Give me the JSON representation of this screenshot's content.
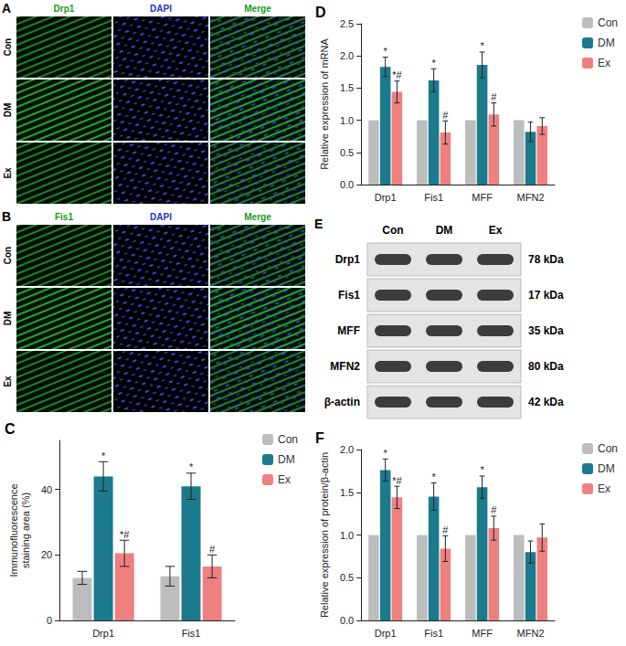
{
  "panels": {
    "A": {
      "label": "A",
      "columns": [
        "Drp1",
        "DAPI",
        "Merge"
      ],
      "rows": [
        "Con",
        "DM",
        "Ex"
      ]
    },
    "B": {
      "label": "B",
      "columns": [
        "Fis1",
        "DAPI",
        "Merge"
      ],
      "rows": [
        "Con",
        "DM",
        "Ex"
      ]
    },
    "E": {
      "label": "E",
      "columns": [
        "Con",
        "DM",
        "Ex"
      ],
      "rows": [
        {
          "protein": "Drp1",
          "size": "78 kDa"
        },
        {
          "protein": "Fis1",
          "size": "17 kDa"
        },
        {
          "protein": "MFF",
          "size": "35 kDa"
        },
        {
          "protein": "MFN2",
          "size": "80 kDa"
        },
        {
          "protein": "β-actin",
          "size": "42 kDa"
        }
      ]
    }
  },
  "chart_data": [
    {
      "type": "bar",
      "title": "C",
      "ylabel": "Immunofluorescence\nstaining area (%)",
      "categories": [
        "Drp1",
        "Fis1"
      ],
      "ylim": [
        0,
        55
      ],
      "yticks": [
        0,
        20,
        40
      ],
      "grid": false,
      "legend": "upper right",
      "series": [
        {
          "name": "Con",
          "color": "#bdbdbd",
          "values": [
            13,
            13.5
          ],
          "error": [
            2,
            3
          ]
        },
        {
          "name": "DM",
          "color": "#1b7a8c",
          "values": [
            44,
            41
          ],
          "error": [
            4.5,
            4
          ],
          "marks": [
            "*",
            "*"
          ]
        },
        {
          "name": "Ex",
          "color": "#ef8080",
          "values": [
            20.5,
            16.5
          ],
          "error": [
            4,
            3.5
          ],
          "marks": [
            "*#",
            "#"
          ]
        }
      ]
    },
    {
      "type": "bar",
      "title": "D",
      "ylabel": "Relative expression of mRNA",
      "categories": [
        "Drp1",
        "Fis1",
        "MFF",
        "MFN2"
      ],
      "ylim": [
        0,
        2.5
      ],
      "yticks": [
        {
          "value": 0,
          "label": "0.0"
        },
        0.5,
        {
          "value": 1,
          "label": "1.0"
        },
        1.5,
        {
          "value": 2,
          "label": "2.0"
        },
        2.5
      ],
      "grid": false,
      "legend": "upper right",
      "series": [
        {
          "name": "Con",
          "color": "#bdbdbd",
          "values": [
            1,
            1,
            1,
            1
          ]
        },
        {
          "name": "DM",
          "color": "#1b7a8c",
          "values": [
            1.83,
            1.62,
            1.86,
            0.82
          ],
          "error": [
            0.15,
            0.18,
            0.2,
            0.15
          ],
          "marks": [
            "*",
            "*",
            "*",
            null
          ]
        },
        {
          "name": "Ex",
          "color": "#ef8080",
          "values": [
            1.44,
            0.81,
            1.09,
            0.91
          ],
          "error": [
            0.17,
            0.18,
            0.18,
            0.13
          ],
          "marks": [
            "*#",
            "#",
            "#",
            null
          ]
        }
      ]
    },
    {
      "type": "bar",
      "title": "F",
      "ylabel": "Relative expression of protein/β-actin",
      "categories": [
        "Drp1",
        "Fis1",
        "MFF",
        "MFN2"
      ],
      "ylim": [
        0,
        2
      ],
      "yticks": [
        {
          "value": 0,
          "label": "0.0"
        },
        0.5,
        {
          "value": 1,
          "label": "1.0"
        },
        1.5,
        {
          "value": 2,
          "label": "2.0"
        }
      ],
      "grid": false,
      "legend": "upper right",
      "series": [
        {
          "name": "Con",
          "color": "#bdbdbd",
          "values": [
            1,
            1,
            1,
            1
          ]
        },
        {
          "name": "DM",
          "color": "#1b7a8c",
          "values": [
            1.76,
            1.45,
            1.56,
            0.8
          ],
          "error": [
            0.13,
            0.16,
            0.13,
            0.13
          ],
          "marks": [
            "*",
            "*",
            "*",
            null
          ]
        },
        {
          "name": "Ex",
          "color": "#ef8080",
          "values": [
            1.44,
            0.84,
            1.08,
            0.97
          ],
          "error": [
            0.13,
            0.15,
            0.14,
            0.16
          ],
          "marks": [
            "*#",
            "#",
            "#",
            null
          ]
        }
      ]
    }
  ]
}
